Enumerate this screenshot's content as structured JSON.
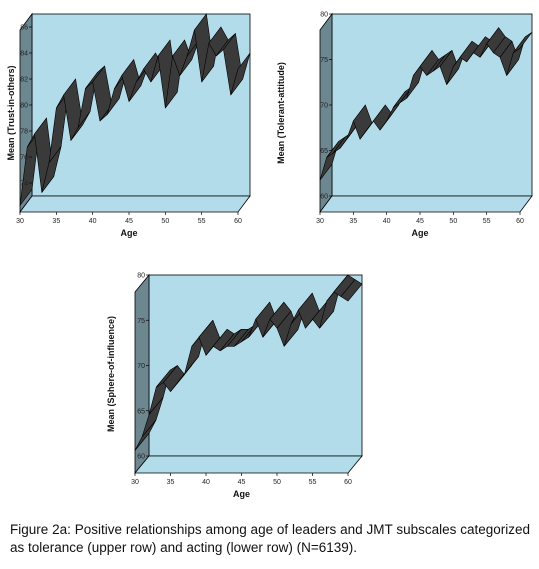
{
  "chart_data": [
    {
      "type": "line",
      "style": "3d-ribbon",
      "xlabel": "Age",
      "ylabel": "Mean (Trust-in-others)",
      "xlim": [
        30,
        60
      ],
      "ylim": [
        73,
        87
      ],
      "x_ticks": [
        30,
        35,
        40,
        45,
        50,
        55,
        60
      ],
      "y_ticks": [
        74,
        76,
        78,
        80,
        82,
        84,
        86
      ],
      "grid": false,
      "x": [
        30,
        31,
        32,
        33,
        34,
        35,
        36,
        37,
        38,
        39,
        40,
        41,
        42,
        43,
        44,
        45,
        46,
        47,
        48,
        49,
        50,
        51,
        52,
        53,
        54,
        55,
        56,
        57,
        58,
        59,
        60
      ],
      "values": [
        73.5,
        78.0,
        79.0,
        74.5,
        76.8,
        81.0,
        82.0,
        78.5,
        79.5,
        82.5,
        83.0,
        80.0,
        80.5,
        82.5,
        83.5,
        81.5,
        83.0,
        84.0,
        83.0,
        85.0,
        81.0,
        85.0,
        83.5,
        85.0,
        87.0,
        83.0,
        86.0,
        85.0,
        85.5,
        82.0,
        84.0
      ]
    },
    {
      "type": "line",
      "style": "3d-ribbon",
      "xlabel": "Age",
      "ylabel": "Mean (Tolerant-attitude)",
      "xlim": [
        30,
        60
      ],
      "ylim": [
        60,
        80
      ],
      "x_ticks": [
        30,
        35,
        40,
        45,
        50,
        55,
        60
      ],
      "y_ticks": [
        60,
        65,
        70,
        75,
        80
      ],
      "grid": false,
      "x": [
        30,
        31,
        32,
        33,
        34,
        35,
        36,
        37,
        38,
        39,
        40,
        41,
        42,
        43,
        44,
        45,
        46,
        47,
        48,
        49,
        50,
        51,
        52,
        53,
        54,
        55,
        56,
        57,
        58,
        59,
        60
      ],
      "values": [
        63.5,
        66.0,
        66.5,
        67.0,
        68.0,
        70.0,
        68.0,
        69.0,
        70.0,
        69.0,
        70.0,
        71.5,
        72.0,
        72.5,
        75.0,
        76.0,
        75.0,
        75.5,
        76.0,
        74.0,
        76.0,
        77.0,
        76.5,
        77.5,
        77.0,
        78.5,
        77.5,
        77.0,
        75.0,
        77.5,
        78.0
      ]
    },
    {
      "type": "line",
      "style": "3d-ribbon",
      "xlabel": "Age",
      "ylabel": "Mean (Sphere-of-influence)",
      "xlim": [
        30,
        60
      ],
      "ylim": [
        60,
        80
      ],
      "x_ticks": [
        30,
        35,
        40,
        45,
        50,
        55,
        60
      ],
      "y_ticks": [
        60,
        65,
        70,
        75,
        80
      ],
      "grid": false,
      "x": [
        30,
        31,
        32,
        33,
        34,
        35,
        36,
        37,
        38,
        39,
        40,
        41,
        42,
        43,
        44,
        45,
        46,
        47,
        48,
        49,
        50,
        51,
        52,
        53,
        54,
        55,
        56,
        57,
        58,
        59,
        60
      ],
      "values": [
        62.5,
        64.0,
        66.5,
        69.5,
        70.0,
        69.0,
        70.0,
        71.0,
        74.0,
        75.0,
        73.0,
        74.0,
        73.5,
        74.0,
        74.0,
        74.5,
        75.0,
        77.0,
        75.0,
        77.0,
        76.0,
        74.0,
        76.5,
        78.0,
        76.0,
        77.0,
        76.0,
        79.0,
        80.0,
        79.5,
        79.0
      ]
    }
  ],
  "caption": "Figure 2a: Positive relationships among age of leaders and JMT subscales categorized as tolerance (upper row) and acting (lower row) (N=6139).",
  "colors": {
    "back_wall": "#b3dcea",
    "side_wall": "#6d8790",
    "floor": "#b3dcea",
    "ribbon_fill": "#3a3a3a",
    "ribbon_stroke": "#000000",
    "frame": "#000000"
  }
}
